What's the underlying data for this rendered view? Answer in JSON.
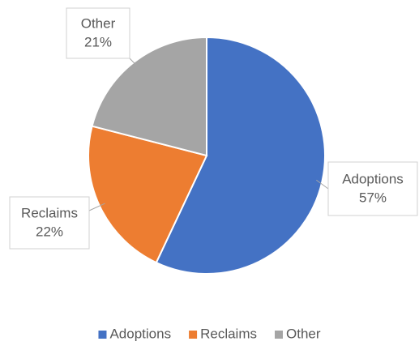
{
  "chart_data": {
    "type": "pie",
    "categories": [
      "Adoptions",
      "Reclaims",
      "Other"
    ],
    "values": [
      57,
      22,
      21
    ],
    "value_labels": [
      "57%",
      "22%",
      "21%"
    ],
    "colors": [
      "#4472c4",
      "#ed7d31",
      "#a5a5a5"
    ],
    "legend": "bottom"
  }
}
